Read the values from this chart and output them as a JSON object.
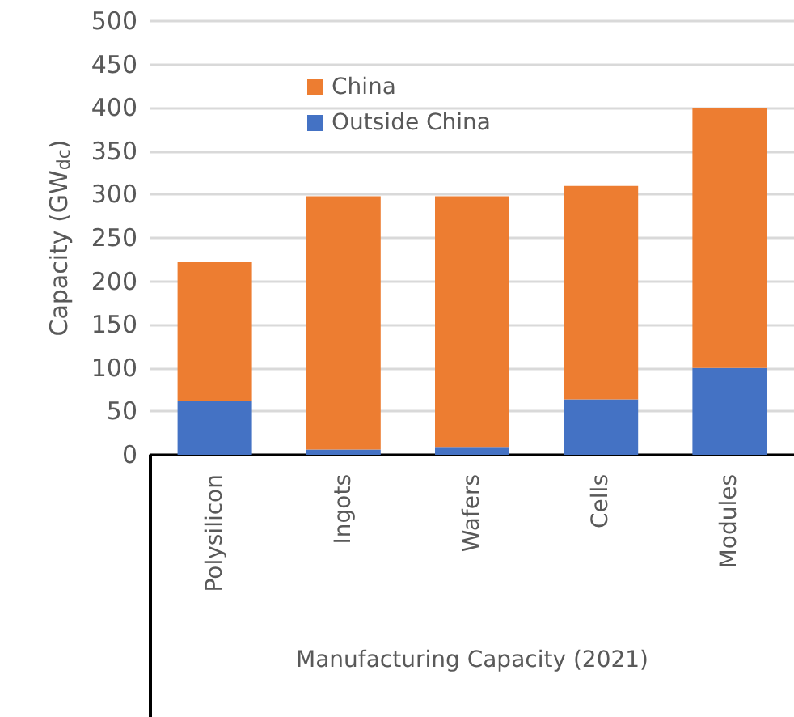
{
  "chart_data": {
    "type": "bar",
    "stacked": true,
    "xlabel": "Manufacturing Capacity (2021)",
    "ylabel": "Capacity (GW$_{dc}$)",
    "categories": [
      "Polysilicon",
      "Ingots",
      "Wafers",
      "Cells",
      "Modules"
    ],
    "series": [
      {
        "name": "Outside China",
        "color": "#4472c4",
        "values": [
          62,
          6,
          9,
          64,
          100
        ]
      },
      {
        "name": "China",
        "color": "#ed7d31",
        "values": [
          160,
          292,
          289,
          246,
          300
        ]
      }
    ],
    "ylim": [
      0,
      500
    ],
    "yticks": [
      0,
      50,
      100,
      150,
      200,
      250,
      300,
      350,
      400,
      450,
      500
    ],
    "grid": "y",
    "legend": "top"
  }
}
